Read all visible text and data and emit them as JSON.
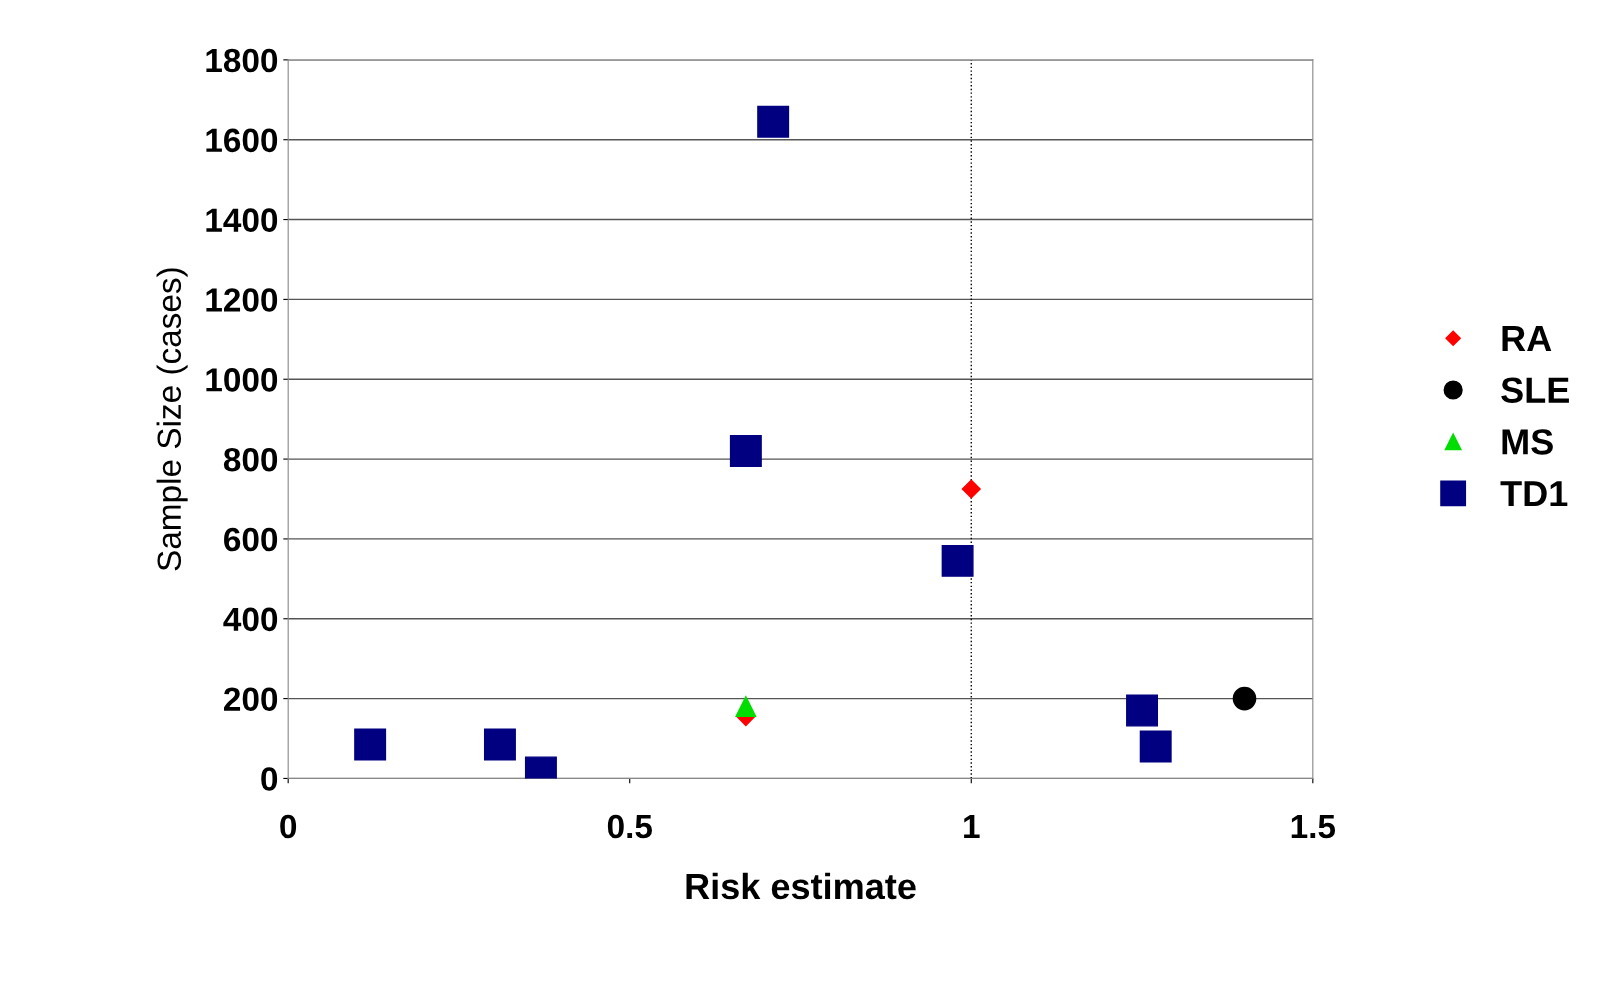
{
  "chart_data": {
    "type": "scatter",
    "xlabel": "Risk estimate",
    "ylabel": "Sample Size (cases)",
    "xlim": [
      0,
      1.5
    ],
    "xticks": [
      0,
      0.5,
      1,
      1.5
    ],
    "ylim": [
      0,
      1800
    ],
    "yticks": [
      0,
      200,
      400,
      600,
      800,
      1000,
      1200,
      1400,
      1600,
      1800
    ],
    "grid": "y",
    "legend": "right",
    "ref_lines": [
      {
        "axis": "x",
        "value": 1,
        "color": "#000000",
        "line_style": "dotted"
      }
    ],
    "series": [
      {
        "name": "RA",
        "color": "#ff0000",
        "marker": "diamond",
        "x": [
          1.0,
          0.67
        ],
        "values": [
          725,
          155
        ]
      },
      {
        "name": "SLE",
        "color": "#000000",
        "marker": "circle",
        "x": [
          1.4
        ],
        "values": [
          200
        ]
      },
      {
        "name": "MS",
        "color": "#00dd00",
        "marker": "triangle",
        "x": [
          0.67
        ],
        "values": [
          180
        ]
      },
      {
        "name": "TD1",
        "color": "#000080",
        "marker": "square",
        "x": [
          0.12,
          0.31,
          0.37,
          0.67,
          0.71,
          0.98,
          1.25,
          1.27
        ],
        "values": [
          85,
          85,
          15,
          820,
          1645,
          545,
          170,
          80
        ]
      }
    ]
  }
}
